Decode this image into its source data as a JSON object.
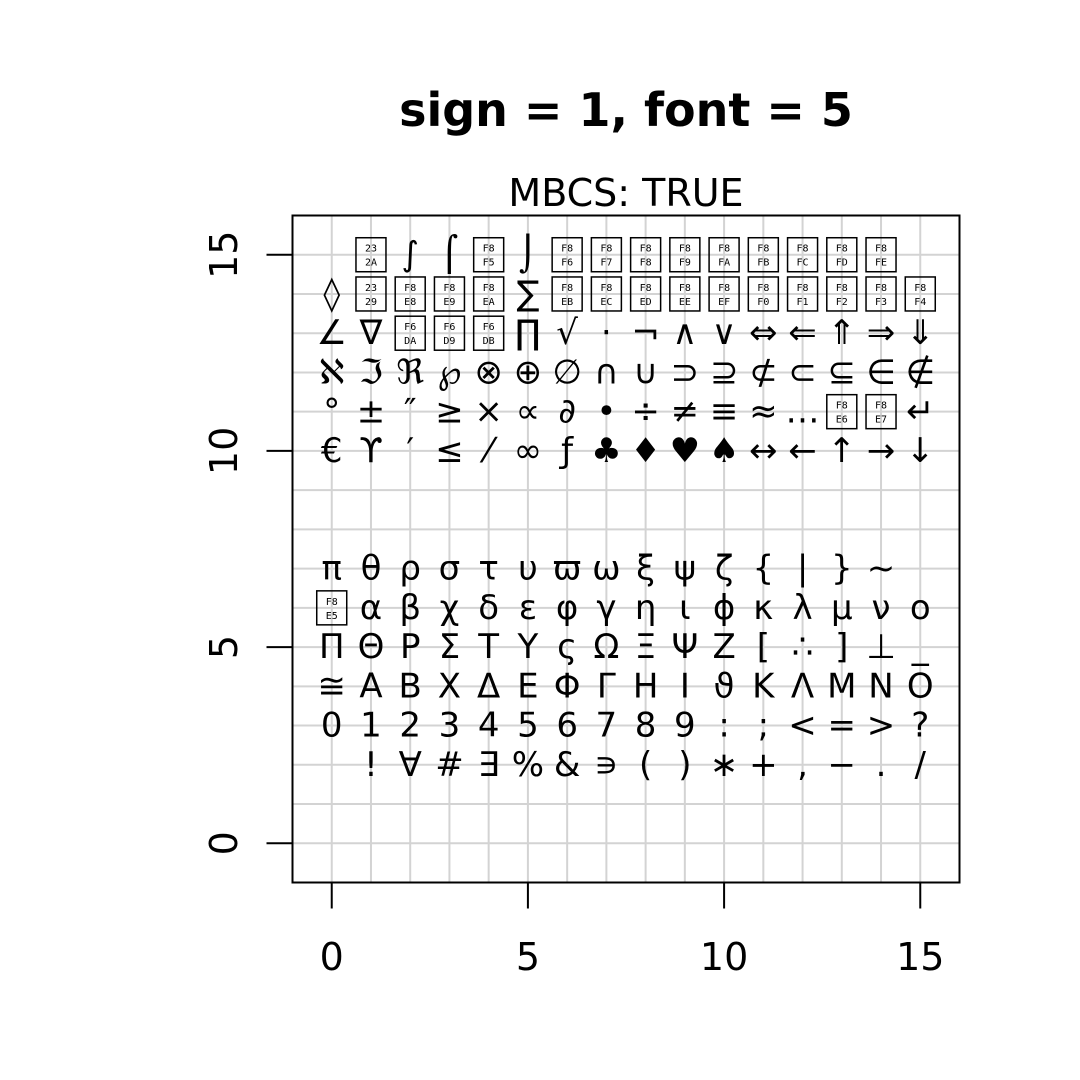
{
  "chart_data": {
    "type": "scatter",
    "title": "sign = 1, font = 5",
    "subtitle": "MBCS: TRUE",
    "xlabel": "",
    "ylabel": "",
    "xlim": [
      -1,
      16
    ],
    "ylim": [
      -1,
      16
    ],
    "x_ticks": [
      0,
      5,
      10,
      15
    ],
    "y_ticks": [
      0,
      5,
      10,
      15
    ],
    "grid": true,
    "grid_x": [
      -1,
      0,
      1,
      2,
      3,
      4,
      5,
      6,
      7,
      8,
      9,
      10,
      11,
      12,
      13,
      14,
      15,
      16
    ],
    "grid_y": [
      -1,
      0,
      1,
      2,
      3,
      4,
      5,
      6,
      7,
      8,
      9,
      10,
      11,
      12,
      13,
      14,
      15,
      16
    ],
    "missing_glyph_style": "boxed hex code",
    "rows": [
      {
        "y": 2,
        "cells": [
          "",
          "!",
          "∀",
          "#",
          "∃",
          "%",
          "&",
          "∍",
          "(",
          ")",
          "∗",
          "+",
          ",",
          "−",
          ".",
          "/"
        ]
      },
      {
        "y": 3,
        "cells": [
          "0",
          "1",
          "2",
          "3",
          "4",
          "5",
          "6",
          "7",
          "8",
          "9",
          ":",
          ";",
          "<",
          "=",
          ">",
          "?"
        ]
      },
      {
        "y": 4,
        "cells": [
          "≅",
          "Α",
          "Β",
          "Χ",
          "Δ",
          "Ε",
          "Φ",
          "Γ",
          "Η",
          "Ι",
          "ϑ",
          "Κ",
          "Λ",
          "Μ",
          "Ν",
          "Ο"
        ]
      },
      {
        "y": 5,
        "cells": [
          "Π",
          "Θ",
          "Ρ",
          "Σ",
          "Τ",
          "Υ",
          "ς",
          "Ω",
          "Ξ",
          "Ψ",
          "Ζ",
          "[",
          "∴",
          "]",
          "⊥",
          "_"
        ]
      },
      {
        "y": 6,
        "cells": [
          "[F8E5]",
          "α",
          "β",
          "χ",
          "δ",
          "ε",
          "φ",
          "γ",
          "η",
          "ι",
          "ϕ",
          "κ",
          "λ",
          "μ",
          "ν",
          "ο"
        ]
      },
      {
        "y": 7,
        "cells": [
          "π",
          "θ",
          "ρ",
          "σ",
          "τ",
          "υ",
          "ϖ",
          "ω",
          "ξ",
          "ψ",
          "ζ",
          "{",
          "|",
          "}",
          "~",
          ""
        ]
      },
      {
        "y": 10,
        "cells": [
          "€",
          "ϒ",
          "′",
          "≤",
          "⁄",
          "∞",
          "ƒ",
          "♣",
          "♦",
          "♥",
          "♠",
          "↔",
          "←",
          "↑",
          "→",
          "↓"
        ]
      },
      {
        "y": 11,
        "cells": [
          "°",
          "±",
          "″",
          "≥",
          "×",
          "∝",
          "∂",
          "•",
          "÷",
          "≠",
          "≡",
          "≈",
          "…",
          "[F8E6]",
          "[F8E7]",
          "↵"
        ]
      },
      {
        "y": 12,
        "cells": [
          "ℵ",
          "ℑ",
          "ℜ",
          "℘",
          "⊗",
          "⊕",
          "∅",
          "∩",
          "∪",
          "⊃",
          "⊇",
          "⊄",
          "⊂",
          "⊆",
          "∈",
          "∉"
        ]
      },
      {
        "y": 13,
        "cells": [
          "∠",
          "∇",
          "[F6DA]",
          "[F6D9]",
          "[F6DB]",
          "∏",
          "√",
          "⋅",
          "¬",
          "∧",
          "∨",
          "⇔",
          "⇐",
          "⇑",
          "⇒",
          "⇓"
        ]
      },
      {
        "y": 14,
        "cells": [
          "◊",
          "[2329]",
          "[F8E8]",
          "[F8E9]",
          "[F8EA]",
          "∑",
          "[F8EB]",
          "[F8EC]",
          "[F8ED]",
          "[F8EE]",
          "[F8EF]",
          "[F8F0]",
          "[F8F1]",
          "[F8F2]",
          "[F8F3]",
          "[F8F4]"
        ]
      },
      {
        "y": 15,
        "cells": [
          "",
          "[232A]",
          "∫",
          "⌠",
          "[F8F5]",
          "⌡",
          "[F8F6]",
          "[F8F7]",
          "[F8F8]",
          "[F8F9]",
          "[F8FA]",
          "[F8FB]",
          "[F8FC]",
          "[F8FD]",
          "[F8FE]",
          ""
        ]
      }
    ]
  }
}
